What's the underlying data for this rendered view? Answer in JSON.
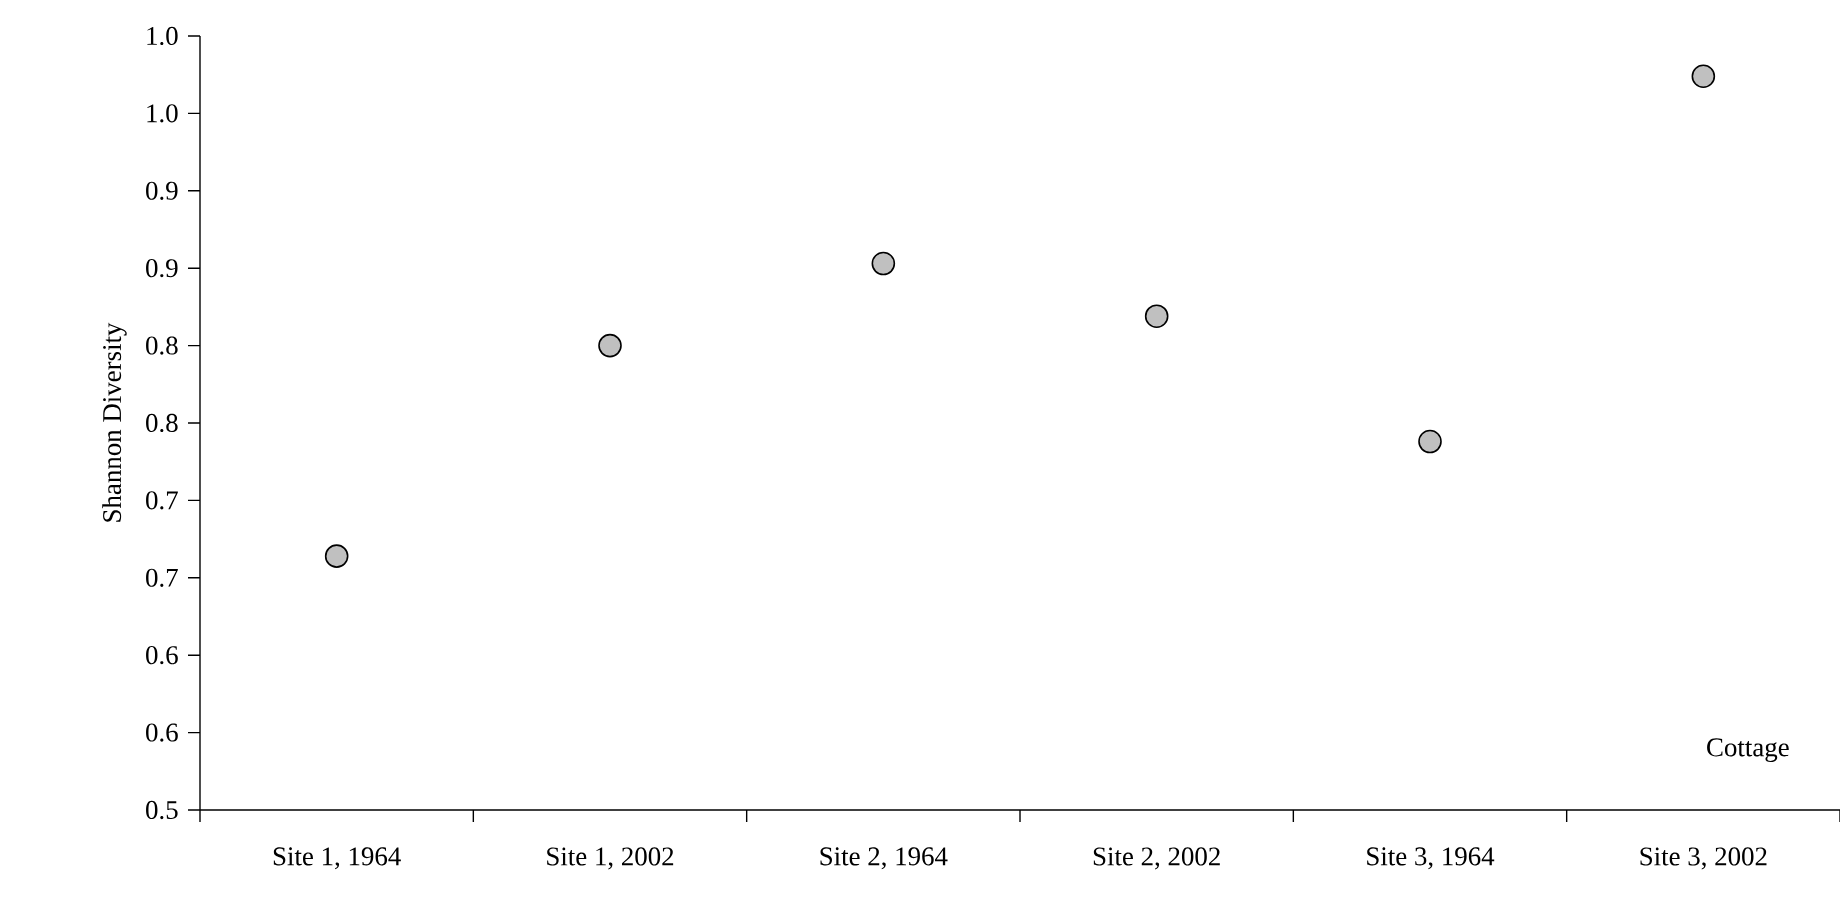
{
  "chart_data": {
    "type": "scatter",
    "ylabel": "Shannon Diversity",
    "categories": [
      "Site 1, 1964",
      "Site 1, 2002",
      "Site 2, 1964",
      "Site 2, 2002",
      "Site 3, 1964",
      "Site 3, 2002"
    ],
    "values": [
      0.664,
      0.8,
      0.853,
      0.819,
      0.738,
      0.974
    ],
    "color": "#c0c0c0",
    "marker": "circle",
    "ylim": [
      0.5,
      1.0
    ],
    "yticks": [
      0.5,
      {
        "value": 0.55,
        "label": "0.6"
      },
      {
        "value": 0.6,
        "label": "0.6"
      },
      {
        "value": 0.65,
        "label": "0.7"
      },
      {
        "value": 0.7,
        "label": "0.7"
      },
      {
        "value": 0.75,
        "label": "0.8"
      },
      {
        "value": 0.8,
        "label": "0.8"
      },
      {
        "value": 0.85,
        "label": "0.9"
      },
      {
        "value": 0.9,
        "label": "0.9"
      },
      {
        "value": 0.95,
        "label": "1.0"
      },
      {
        "value": 1.0,
        "label": "1.0"
      }
    ],
    "annotations": [
      "Cottage"
    ]
  }
}
